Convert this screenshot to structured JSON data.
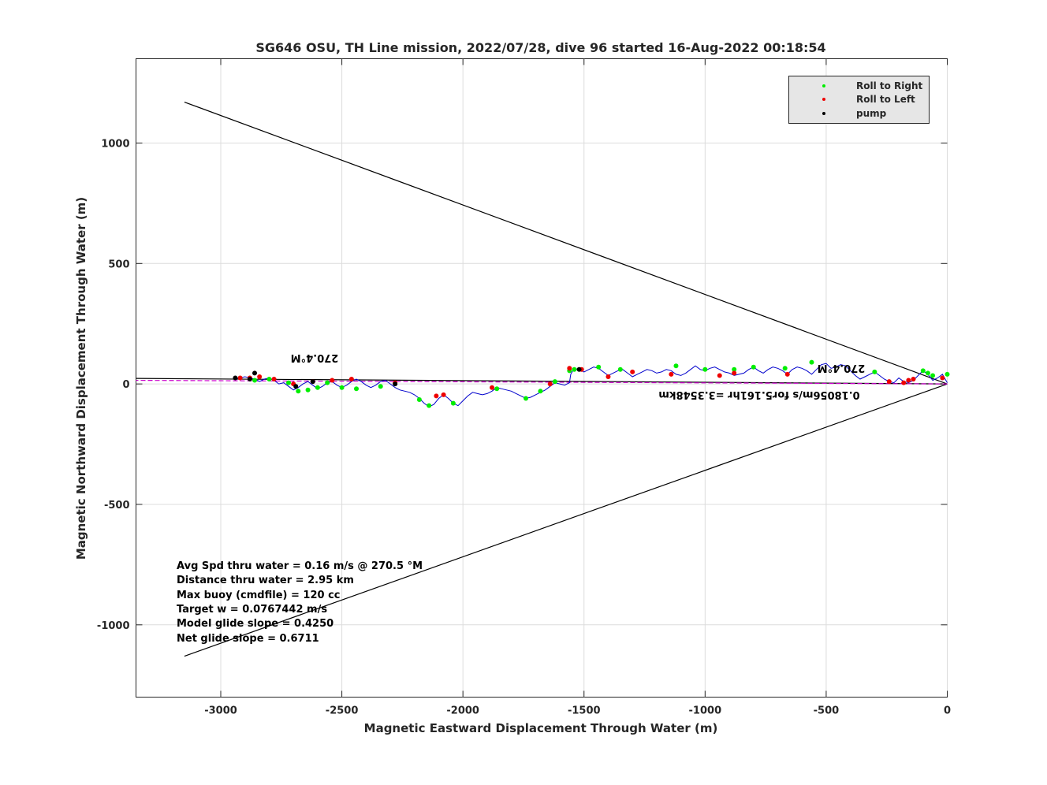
{
  "chart_data": {
    "type": "line",
    "title": "SG646 OSU, TH Line mission, 2022/07/28, dive 96 started 16-Aug-2022 00:18:54",
    "xlabel": "Magnetic Eastward Displacement Through Water (m)",
    "ylabel": "Magnetic Northward Displacement Through Water (m)",
    "xlim": [
      -3350,
      0
    ],
    "ylim": [
      -1300,
      1350
    ],
    "xticks": [
      -3000,
      -2500,
      -2000,
      -1500,
      -1000,
      -500,
      0
    ],
    "xtick_labels": [
      "-3000",
      "-2500",
      "-2000",
      "-1500",
      "-1000",
      "-500",
      "0"
    ],
    "yticks": [
      -1000,
      -500,
      0,
      500,
      1000
    ],
    "ytick_labels": [
      "-1000",
      "-500",
      "0",
      "500",
      "1000"
    ],
    "grid": true,
    "legend": {
      "position": "top-right",
      "entries": [
        {
          "label": "Roll to Right",
          "color": "#00ee00"
        },
        {
          "label": "Roll to Left",
          "color": "#ee0000"
        },
        {
          "label": "pump",
          "color": "#000000"
        }
      ]
    },
    "colors": {
      "track": "#0000cc",
      "heading_line": "#cc00cc",
      "axes": "#000000"
    },
    "series": [
      {
        "type": "line",
        "x": [
          0,
          -20,
          -40,
          -60,
          -80,
          -100,
          -120,
          -140,
          -160,
          -180,
          -200,
          -220,
          -240,
          -260,
          -280,
          -300,
          -320,
          -340,
          -360,
          -380,
          -400,
          -420,
          -440,
          -460,
          -480,
          -500,
          -520,
          -540,
          -560,
          -580,
          -600,
          -620,
          -640,
          -660,
          -680,
          -700,
          -720,
          -740,
          -760,
          -780,
          -800,
          -820,
          -840,
          -860,
          -880,
          -900,
          -920,
          -940,
          -960,
          -980,
          -1000,
          -1020,
          -1040,
          -1060,
          -1080,
          -1100,
          -1120,
          -1140,
          -1160,
          -1180,
          -1200,
          -1220,
          -1240,
          -1260,
          -1280,
          -1300,
          -1320,
          -1340,
          -1360,
          -1380,
          -1400,
          -1420,
          -1440,
          -1460,
          -1480,
          -1500,
          -1520,
          -1540,
          -1555,
          -1560,
          -1580,
          -1600,
          -1620,
          -1640,
          -1660,
          -1680,
          -1700,
          -1720,
          -1740,
          -1760,
          -1780,
          -1800,
          -1820,
          -1840,
          -1860,
          -1880,
          -1900,
          -1920,
          -1940,
          -1960,
          -1980,
          -2000,
          -2020,
          -2040,
          -2060,
          -2080,
          -2100,
          -2120,
          -2140,
          -2160,
          -2180,
          -2200,
          -2220,
          -2240,
          -2260,
          -2280,
          -2300,
          -2320,
          -2340,
          -2360,
          -2380,
          -2400,
          -2420,
          -2440,
          -2460,
          -2480,
          -2500,
          -2520,
          -2540,
          -2560,
          -2580,
          -2600,
          -2620,
          -2640,
          -2660,
          -2680,
          -2700,
          -2720,
          -2740,
          -2760,
          -2780,
          -2800,
          -2820,
          -2840,
          -2860,
          -2880,
          -2900,
          -2920,
          -2940
        ],
        "y": [
          5,
          40,
          25,
          15,
          40,
          55,
          35,
          15,
          5,
          10,
          25,
          5,
          10,
          20,
          35,
          50,
          40,
          30,
          20,
          35,
          55,
          75,
          80,
          70,
          65,
          85,
          80,
          60,
          40,
          55,
          65,
          70,
          60,
          40,
          55,
          65,
          70,
          60,
          45,
          55,
          70,
          60,
          45,
          40,
          35,
          45,
          50,
          60,
          70,
          65,
          55,
          60,
          75,
          60,
          45,
          35,
          40,
          55,
          60,
          50,
          45,
          55,
          60,
          50,
          40,
          30,
          45,
          60,
          55,
          45,
          35,
          50,
          65,
          70,
          60,
          50,
          60,
          65,
          40,
          5,
          -5,
          0,
          5,
          -10,
          -25,
          -35,
          -45,
          -55,
          -60,
          -50,
          -40,
          -30,
          -25,
          -20,
          -15,
          -30,
          -40,
          -45,
          -40,
          -35,
          -50,
          -70,
          -90,
          -80,
          -60,
          -45,
          -60,
          -85,
          -95,
          -80,
          -60,
          -45,
          -35,
          -30,
          -25,
          -15,
          0,
          15,
          10,
          -5,
          -15,
          -5,
          10,
          20,
          10,
          -5,
          -15,
          -5,
          10,
          5,
          -10,
          -20,
          -5,
          10,
          0,
          -15,
          -25,
          -10,
          5,
          0,
          15,
          25,
          20,
          10,
          20,
          25,
          30,
          25,
          20
        ]
      }
    ],
    "reference_lines": [
      {
        "x": [
          0,
          -3150
        ],
        "y": [
          0,
          1170
        ]
      },
      {
        "x": [
          0,
          -3150
        ],
        "y": [
          0,
          -1130
        ]
      },
      {
        "x": [
          0,
          -3350
        ],
        "y": [
          0,
          23
        ]
      },
      {
        "x": [
          0,
          -3350
        ],
        "y": [
          0,
          15
        ]
      }
    ],
    "roll_right_x": [
      0,
      -60,
      -80,
      -100,
      -300,
      -560,
      -670,
      -800,
      -880,
      -1000,
      -1120,
      -1350,
      -1440,
      -1540,
      -1560,
      -1620,
      -1680,
      -1740,
      -1860,
      -2040,
      -2140,
      -2180,
      -2340,
      -2440,
      -2500,
      -2560,
      -2600,
      -2640,
      -2680,
      -2720,
      -2800,
      -2860
    ],
    "roll_right_y": [
      40,
      35,
      45,
      55,
      50,
      90,
      65,
      70,
      60,
      60,
      75,
      60,
      70,
      60,
      55,
      10,
      -30,
      -60,
      -20,
      -80,
      -90,
      -65,
      -10,
      -20,
      -15,
      5,
      -15,
      -25,
      -30,
      5,
      20,
      15
    ],
    "roll_left_x": [
      -20,
      -140,
      -160,
      -180,
      -240,
      -660,
      -880,
      -940,
      -1140,
      -1300,
      -1400,
      -1510,
      -1560,
      -1640,
      -1880,
      -2080,
      -2110,
      -2280,
      -2460,
      -2540,
      -2620,
      -2700,
      -2780,
      -2840,
      -2880,
      -2920
    ],
    "roll_left_y": [
      25,
      20,
      15,
      5,
      10,
      40,
      45,
      35,
      40,
      50,
      30,
      60,
      65,
      0,
      -15,
      -45,
      -50,
      5,
      20,
      15,
      10,
      0,
      20,
      30,
      25,
      25
    ],
    "pump_x": [
      -1520,
      -2280,
      -2620,
      -2690,
      -2860,
      -2880,
      -2940
    ],
    "pump_y": [
      60,
      0,
      10,
      -10,
      45,
      20,
      25
    ],
    "annotations": {
      "heading_left": "270.4°M",
      "heading_right": "270.4°M",
      "speed_note": "0.18056m/s for5.161hr =3.3548km"
    },
    "stats": [
      "Avg Spd thru water  =  0.16 m/s @ 270.5 °M",
      "Distance thru water =  2.95 km",
      "Max buoy (cmdfile)  = 120 cc",
      "Target w                  = 0.0767442 m/s",
      "Model glide slope    = 0.4250",
      "Net glide slope         = 0.6711"
    ]
  }
}
